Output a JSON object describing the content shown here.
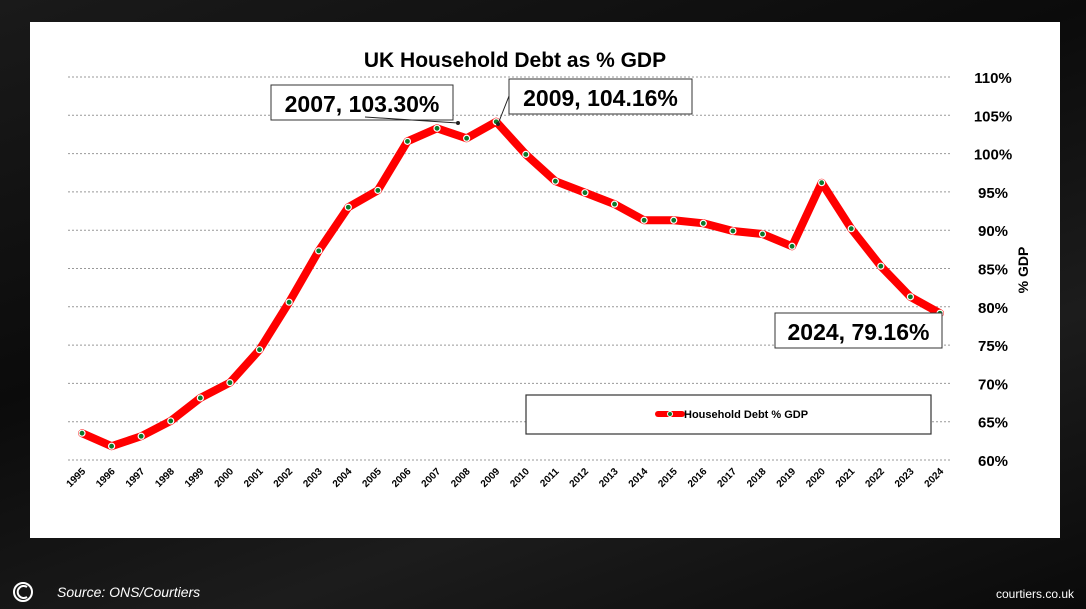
{
  "chart_data": {
    "type": "line",
    "title": "UK Household Debt as % GDP",
    "xlabel": "",
    "ylabel": "% GDP",
    "ylim": [
      60,
      110
    ],
    "yticks": [
      "60%",
      "65%",
      "70%",
      "75%",
      "80%",
      "85%",
      "90%",
      "95%",
      "100%",
      "105%",
      "110%"
    ],
    "grid": true,
    "legend_position": "bottom-right",
    "categories": [
      "1995",
      "1996",
      "1997",
      "1998",
      "1999",
      "2000",
      "2001",
      "2002",
      "2003",
      "2004",
      "2005",
      "2006",
      "2007",
      "2008",
      "2009",
      "2010",
      "2011",
      "2012",
      "2013",
      "2014",
      "2015",
      "2016",
      "2017",
      "2018",
      "2019",
      "2020",
      "2021",
      "2022",
      "2023",
      "2024"
    ],
    "series": [
      {
        "name": "Household Debt % GDP",
        "color": "#ff0000",
        "values": [
          63.5,
          61.8,
          63.1,
          65.1,
          68.1,
          70.1,
          74.4,
          80.6,
          87.3,
          93.0,
          95.2,
          101.6,
          103.3,
          102.0,
          104.16,
          99.9,
          96.4,
          94.9,
          93.4,
          91.3,
          91.3,
          90.9,
          89.9,
          89.5,
          87.9,
          96.2,
          90.2,
          85.3,
          81.3,
          79.16
        ]
      }
    ],
    "annotations": [
      {
        "text": "2007, 103.30%",
        "index": 12
      },
      {
        "text": "2009, 104.16%",
        "index": 14
      },
      {
        "text": "2024, 79.16%",
        "index": 29
      }
    ]
  },
  "footer": {
    "source": "Source: ONS/Courtiers",
    "site": "courtiers.co.uk"
  }
}
